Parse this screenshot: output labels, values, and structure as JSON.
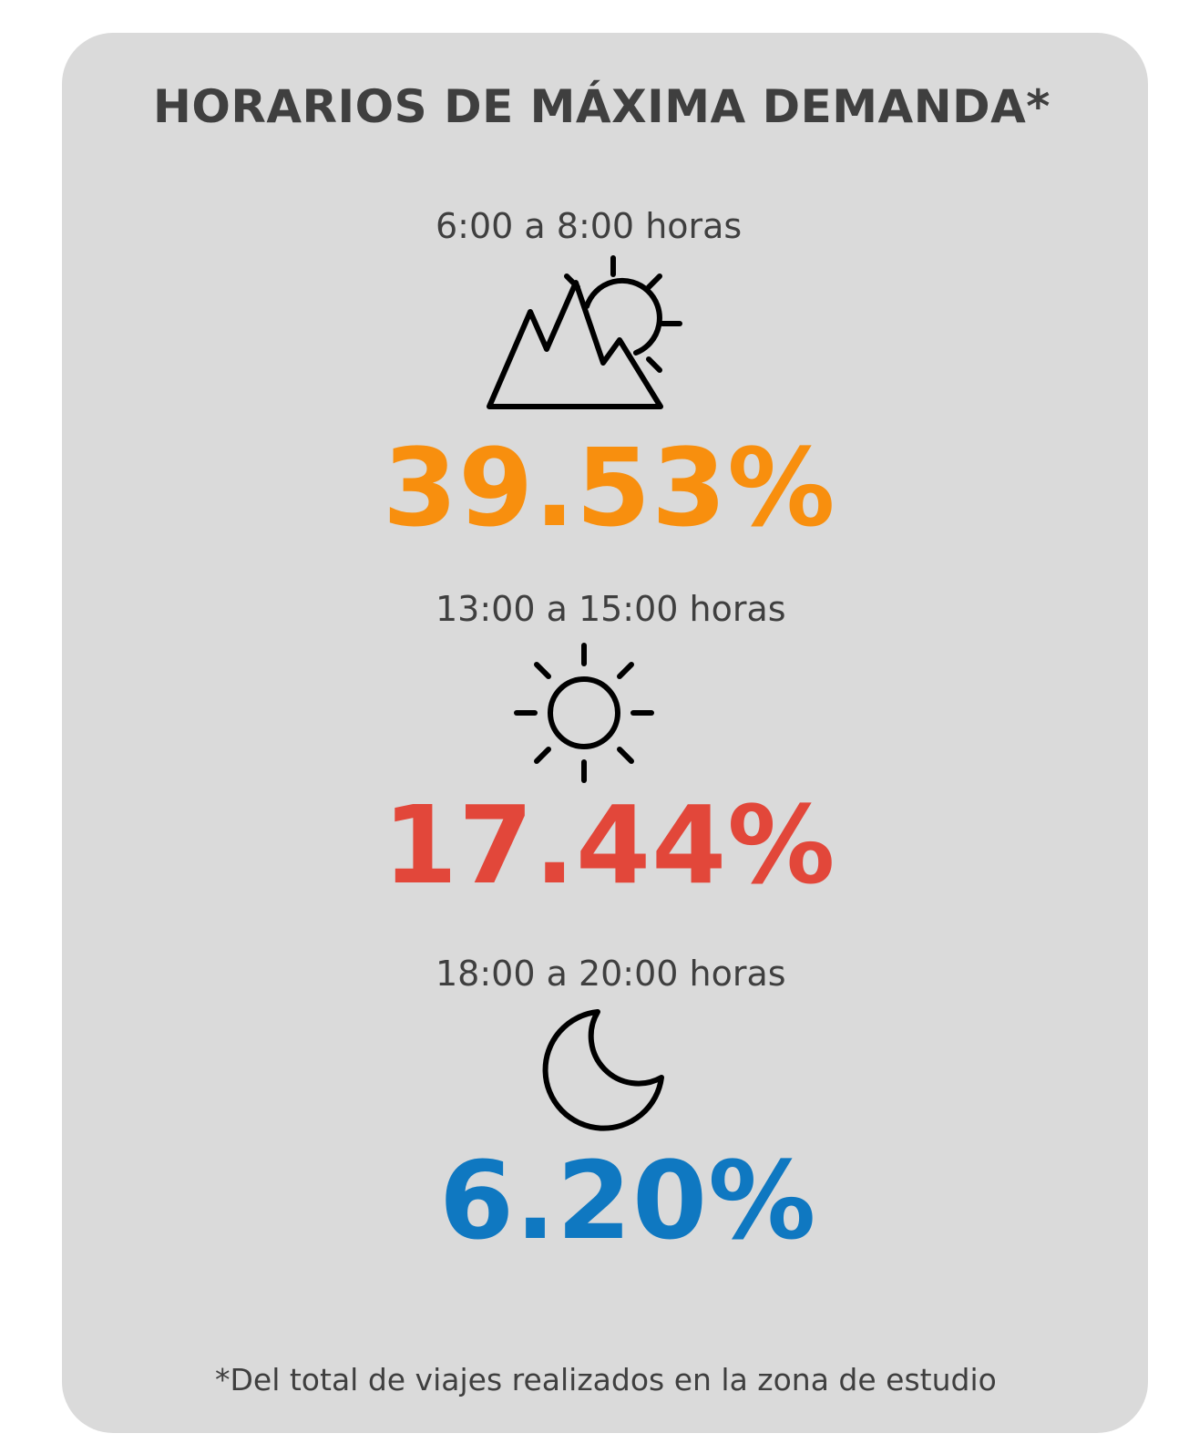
{
  "title": "HORARIOS DE MÁXIMA DEMANDA*",
  "periods": [
    {
      "time": "6:00 a 8:00 horas",
      "icon": "sunrise-mountain-icon",
      "percent": "39.53%",
      "color": "#f88f0e"
    },
    {
      "time": "13:00 a 15:00 horas",
      "icon": "sun-icon",
      "percent": "17.44%",
      "color": "#e2473a"
    },
    {
      "time": "18:00 a 20:00 horas",
      "icon": "moon-icon",
      "percent": "6.20%",
      "color": "#0f78c1"
    }
  ],
  "footnote": "*Del total de viajes realizados en la zona de estudio"
}
